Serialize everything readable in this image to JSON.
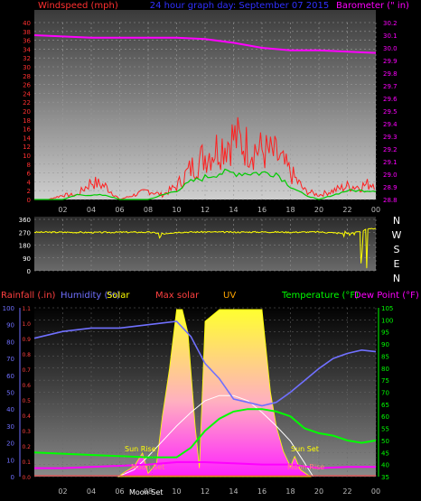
{
  "top_panel": {
    "title_left": "Windspeed (mph)",
    "title_center": "24 hour graph day: September 07 2015",
    "title_right": "Barometer (\" in)"
  },
  "dir_panel": {
    "compass": [
      "N",
      "W",
      "S",
      "E",
      "N"
    ]
  },
  "bottom_panel": {
    "legend": [
      {
        "label": "Rainfall (.in)",
        "color": "#ff4040"
      },
      {
        "label": "Humidity (%)",
        "color": "#7070ff"
      },
      {
        "label": "Solar",
        "color": "#ffff00"
      },
      {
        "label": "Max solar",
        "color": "#ff4040"
      },
      {
        "label": "UV",
        "color": "#ffa500"
      },
      {
        "label": "Temperature (°F)",
        "color": "#00ff00"
      },
      {
        "label": "Dew Point (°F)",
        "color": "#ff00ff"
      }
    ],
    "annotations": [
      {
        "label": "Sun Rise",
        "color": "#ffff00"
      },
      {
        "label": "Sun Set",
        "color": "#ffff00"
      },
      {
        "label": "Moon Set",
        "color": "#ff8080"
      },
      {
        "label": "Moon Rise",
        "color": "#ff8080"
      },
      {
        "label": "Moon Set",
        "color": "#ffffff"
      }
    ]
  },
  "chart_data": [
    {
      "type": "line",
      "title": "24 hour graph day: September 07 2015",
      "x_ticks": [
        "02",
        "04",
        "06",
        "08",
        "10",
        "12",
        "14",
        "16",
        "18",
        "20",
        "22",
        "00"
      ],
      "y_left": {
        "label": "Windspeed (mph)",
        "ticks": [
          0,
          2,
          4,
          6,
          8,
          10,
          12,
          14,
          16,
          18,
          20,
          22,
          24,
          26,
          28,
          30,
          32,
          34,
          36,
          38,
          40
        ],
        "lim": [
          0,
          40
        ]
      },
      "y_right": {
        "label": "Barometer (\" in)",
        "ticks": [
          28.8,
          28.9,
          29.0,
          29.1,
          29.2,
          29.3,
          29.4,
          29.5,
          29.6,
          29.7,
          29.8,
          29.9,
          30.0,
          30.1,
          30.2
        ],
        "lim": [
          28.8,
          30.2
        ]
      },
      "series": [
        {
          "name": "Windspeed (mph)",
          "color": "#ff2020",
          "hours": [
            0,
            1,
            2,
            3,
            4,
            5,
            6,
            7,
            8,
            9,
            10,
            11,
            12,
            13,
            14,
            15,
            16,
            17,
            18,
            19,
            20,
            21,
            22,
            23,
            24
          ],
          "values": [
            0,
            0,
            1,
            1,
            4,
            3,
            0,
            1,
            2,
            1,
            3,
            7,
            10,
            12,
            14,
            12,
            11,
            10,
            6,
            2,
            1,
            2,
            3,
            3,
            4
          ]
        },
        {
          "name": "Wind gust (mph)",
          "color": "#00cc00",
          "hours": [
            0,
            1,
            2,
            3,
            4,
            5,
            6,
            7,
            8,
            9,
            10,
            11,
            12,
            13,
            14,
            15,
            16,
            17,
            18,
            19,
            20,
            21,
            22,
            23,
            24
          ],
          "values": [
            0,
            0,
            0,
            1,
            1,
            1,
            0,
            0,
            0,
            1,
            2,
            4,
            5,
            6,
            6,
            6,
            6,
            6,
            3,
            1,
            0,
            1,
            2,
            2,
            2
          ]
        },
        {
          "name": "Barometer (\" in)",
          "color": "#ff00ff",
          "hours": [
            0,
            2,
            4,
            6,
            8,
            10,
            12,
            14,
            16,
            18,
            20,
            22,
            24
          ],
          "values": [
            30.1,
            30.09,
            30.08,
            30.08,
            30.08,
            30.08,
            30.07,
            30.04,
            30.0,
            29.98,
            29.98,
            29.97,
            29.96
          ]
        }
      ]
    },
    {
      "type": "line",
      "x_ticks": [
        "02",
        "04",
        "06",
        "08",
        "10",
        "12",
        "14",
        "16",
        "18",
        "20",
        "22",
        "00"
      ],
      "y_left": {
        "label": "Wind direction",
        "ticks": [
          0,
          90,
          180,
          270,
          360
        ],
        "lim": [
          0,
          360
        ]
      },
      "y_right": {
        "label": "",
        "ticks": [
          "N",
          "W",
          "S",
          "E",
          "N"
        ],
        "lim": [
          0,
          360
        ]
      },
      "series": [
        {
          "name": "Wind direction",
          "color": "#ffff00",
          "hours": [
            0,
            2,
            4,
            6,
            8,
            9,
            10,
            12,
            14,
            16,
            18,
            20,
            21,
            22,
            23,
            24
          ],
          "values": [
            270,
            270,
            268,
            270,
            270,
            260,
            270,
            272,
            270,
            272,
            270,
            272,
            265,
            260,
            280,
            300
          ]
        }
      ]
    },
    {
      "type": "area",
      "x_ticks": [
        "02",
        "04",
        "06",
        "08",
        "10",
        "12",
        "14",
        "16",
        "18",
        "20",
        "22",
        "00"
      ],
      "y_left": {
        "label": "Humidity (%)",
        "ticks": [
          0,
          10,
          20,
          30,
          40,
          50,
          60,
          70,
          80,
          90,
          100
        ],
        "lim": [
          0,
          100
        ]
      },
      "y_rain": {
        "label": "Rainfall (.in)",
        "ticks": [
          0,
          0.1,
          0.2,
          0.3,
          0.4,
          0.5,
          0.6,
          0.7,
          0.8,
          0.9,
          1.0,
          1.1
        ],
        "lim": [
          0,
          1.1
        ]
      },
      "y_right": {
        "label": "Temperature (°F)",
        "ticks": [
          35,
          40,
          45,
          50,
          55,
          60,
          65,
          70,
          75,
          80,
          85,
          90,
          95,
          100,
          105
        ],
        "lim": [
          35,
          105
        ]
      },
      "series": [
        {
          "name": "Humidity (%)",
          "color": "#7070ff",
          "hours": [
            0,
            2,
            4,
            6,
            8,
            10,
            11,
            12,
            13,
            14,
            15,
            16,
            17,
            18,
            19,
            20,
            21,
            22,
            23,
            24
          ],
          "values": [
            82,
            86,
            88,
            88,
            90,
            92,
            83,
            67,
            58,
            46,
            44,
            42,
            44,
            50,
            57,
            64,
            70,
            73,
            75,
            74
          ]
        },
        {
          "name": "Temperature (°F)",
          "color": "#00ff00",
          "hours": [
            0,
            2,
            4,
            6,
            8,
            10,
            11,
            12,
            13,
            14,
            15,
            16,
            17,
            18,
            19,
            20,
            21,
            22,
            23,
            24
          ],
          "values": [
            45,
            44.5,
            44,
            43.5,
            43,
            43,
            47,
            54,
            59,
            62,
            63,
            63,
            62,
            60,
            55,
            53,
            52,
            50,
            49,
            50
          ]
        },
        {
          "name": "Dew Point (°F)",
          "color": "#ff00ff",
          "hours": [
            0,
            2,
            4,
            6,
            8,
            10,
            12,
            14,
            16,
            18,
            20,
            22,
            24
          ],
          "values": [
            38.5,
            38.5,
            39,
            39.5,
            40,
            41,
            41,
            40.5,
            40,
            40,
            38.5,
            39,
            39
          ]
        },
        {
          "name": "Max solar",
          "color": "#ffffff",
          "hours": [
            5.9,
            7,
            8,
            9,
            10,
            11,
            12,
            13,
            14,
            15,
            16,
            17,
            18,
            19,
            19.6
          ],
          "values": [
            0,
            4,
            12,
            21,
            30,
            38,
            45,
            48,
            48,
            45,
            38,
            30,
            21,
            8,
            0
          ]
        },
        {
          "name": "Solar",
          "color": "#ffff00",
          "hours": [
            5.9,
            6.4,
            7,
            7.6,
            8,
            8.6,
            9,
            9.5,
            10,
            10.4,
            10.8,
            11.3,
            11.6,
            12,
            13,
            14,
            15,
            16,
            16.6,
            17,
            17.5,
            18,
            18.3,
            18.7,
            19.4
          ],
          "values": [
            0,
            3,
            6,
            14,
            2,
            8,
            36,
            64,
            99,
            99,
            85,
            30,
            5,
            92,
            99,
            99,
            99,
            99,
            50,
            30,
            15,
            6,
            12,
            4,
            0
          ]
        }
      ],
      "events": [
        {
          "label": "Sun Rise",
          "hour": 6.3
        },
        {
          "label": "Moon Set",
          "hour": 8.3
        },
        {
          "label": "Sun Set",
          "hour": 19.6
        },
        {
          "label": "Moon Rise",
          "hour": 19.9
        },
        {
          "label": "Moon Set",
          "hour": 7.1
        }
      ]
    }
  ]
}
